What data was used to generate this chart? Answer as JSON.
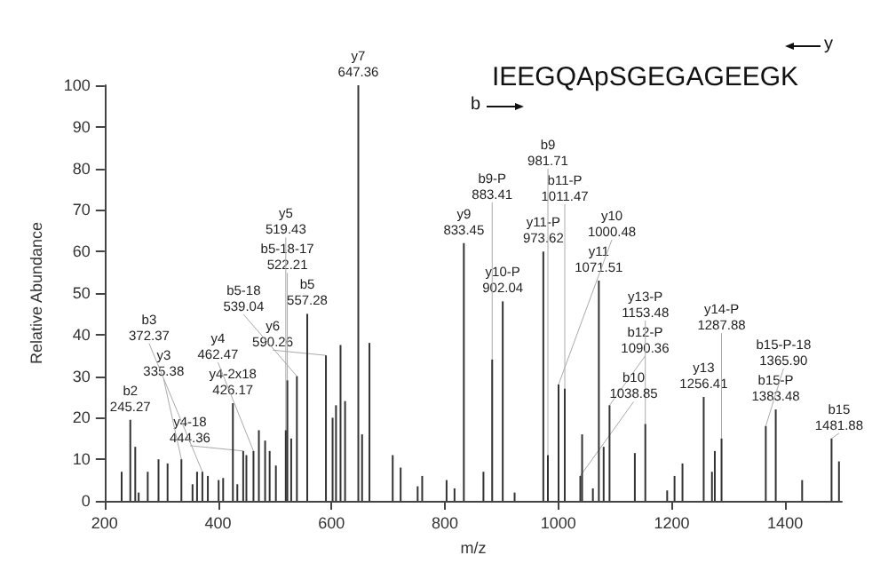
{
  "chart_data": {
    "type": "bar",
    "xlabel": "m/z",
    "ylabel": "Relative Abundance",
    "x": [
      230,
      245.27,
      254,
      260,
      276,
      295,
      311,
      335.38,
      355,
      363,
      372.37,
      382,
      401,
      409,
      426.17,
      434,
      444.36,
      450,
      462.47,
      472,
      483,
      491,
      502,
      519.43,
      522.21,
      529,
      539.04,
      557.28,
      590.26,
      602,
      608,
      616,
      624,
      647.36,
      654,
      667,
      708,
      722,
      752,
      760,
      803,
      817,
      833.45,
      868,
      883.41,
      902.04,
      923,
      973.62,
      981.71,
      1000.48,
      1011.47,
      1038.85,
      1042,
      1061,
      1071.51,
      1080,
      1090.36,
      1135,
      1153.48,
      1192,
      1205,
      1219,
      1256.41,
      1271,
      1276,
      1287.88,
      1365.9,
      1383.48,
      1430,
      1481.88,
      1495
    ],
    "values": [
      7,
      19.5,
      13,
      2,
      7,
      10,
      9,
      10,
      4,
      7,
      7,
      6,
      5,
      5.5,
      23.5,
      4,
      12,
      11,
      12,
      17,
      14.5,
      12,
      8.5,
      17,
      29,
      15,
      30,
      45,
      35,
      20,
      23,
      37.5,
      24,
      100,
      16,
      38,
      11,
      8,
      3.5,
      6,
      5,
      3,
      62,
      7,
      34,
      48,
      2,
      60,
      11,
      28,
      27,
      6,
      16,
      3,
      53,
      13,
      23,
      11.5,
      18.5,
      2.5,
      6,
      9,
      25,
      7,
      12,
      15,
      18,
      22,
      5,
      15,
      9.5
    ],
    "color": "#333333",
    "xlim": [
      200,
      1500
    ],
    "xticks": [
      200,
      400,
      600,
      800,
      {
        "value": 1000,
        "label": "1000"
      },
      {
        "value": 1200,
        "label": "1200"
      },
      {
        "value": 1400,
        "label": "1400"
      }
    ],
    "ylim": [
      0,
      100
    ],
    "yticks": [
      0,
      10,
      20,
      30,
      40,
      50,
      60,
      70,
      80,
      90,
      100
    ],
    "grid": false,
    "annotations": [
      "IEEGQApSGEGAGEEGK",
      "b",
      "y",
      {
        "text": "b2\n245.27",
        "x": 245.27,
        "y": 19.5
      },
      {
        "text": "y3\n335.38",
        "x": 335.38,
        "y": 10
      },
      {
        "text": "b3\n372.37",
        "x": 372.37,
        "y": 7
      },
      {
        "text": "y4-2x18\n426.17",
        "x": 426.17,
        "y": 23.5
      },
      {
        "text": "y4-18\n444.36",
        "x": 444.36,
        "y": 12
      },
      {
        "text": "y4\n462.47",
        "x": 462.47,
        "y": 12
      },
      {
        "text": "y5\n519.43",
        "x": 519.43,
        "y": 17
      },
      {
        "text": "b5-18-17\n522.21",
        "x": 522.21,
        "y": 29
      },
      {
        "text": "b5-18\n539.04",
        "x": 539.04,
        "y": 30
      },
      {
        "text": "b5\n557.28",
        "x": 557.28,
        "y": 45
      },
      {
        "text": "y6\n590.26",
        "x": 590.26,
        "y": 35
      },
      {
        "text": "y7\n647.36",
        "x": 647.36,
        "y": 100
      },
      {
        "text": "y9\n833.45",
        "x": 833.45,
        "y": 62
      },
      {
        "text": "b9-P\n883.41",
        "x": 883.41,
        "y": 34
      },
      {
        "text": "y10-P\n902.04",
        "x": 902.04,
        "y": 48
      },
      {
        "text": "y11-P\n973.62",
        "x": 973.62,
        "y": 60
      },
      {
        "text": "b9\n981.71",
        "x": 981.71,
        "y": 11
      },
      {
        "text": "y10\n1000.48",
        "x": 1000.48,
        "y": 28
      },
      {
        "text": "b11-P\n1011.47",
        "x": 1011.47,
        "y": 27
      },
      {
        "text": "b10\n1038.85",
        "x": 1038.85,
        "y": 6
      },
      {
        "text": "y11\n1071.51",
        "x": 1071.51,
        "y": 53
      },
      {
        "text": "b12-P\n1090.36",
        "x": 1090.36,
        "y": 23
      },
      {
        "text": "y13-P\n1153.48",
        "x": 1153.48,
        "y": 18.5
      },
      {
        "text": "y13\n1256.41",
        "x": 1256.41,
        "y": 25
      },
      {
        "text": "y14-P\n1287.88",
        "x": 1287.88,
        "y": 15
      },
      {
        "text": "b15-P-18\n1365.90",
        "x": 1365.9,
        "y": 18
      },
      {
        "text": "b15-P\n1383.48",
        "x": 1383.48,
        "y": 22
      },
      {
        "text": "b15\n1481.88",
        "x": 1481.88,
        "y": 15
      }
    ]
  }
}
